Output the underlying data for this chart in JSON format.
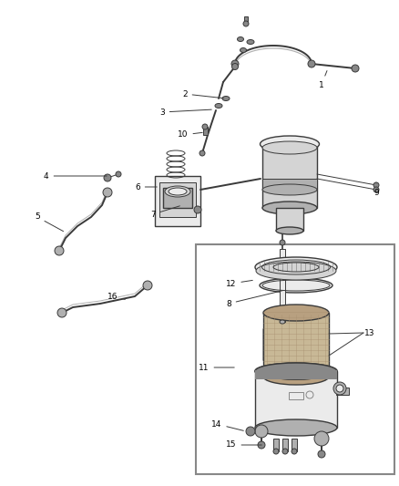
{
  "bg_color": "#ffffff",
  "line_color": "#3a3a3a",
  "label_color": "#000000",
  "label_fontsize": 6.5,
  "fig_width": 4.38,
  "fig_height": 5.33,
  "dpi": 100,
  "gray_light": "#d4d4d4",
  "gray_mid": "#b0b0b0",
  "gray_dark": "#888888",
  "gray_very_light": "#ebebeb",
  "tan_light": "#c8b896",
  "tan_dark": "#a89070"
}
